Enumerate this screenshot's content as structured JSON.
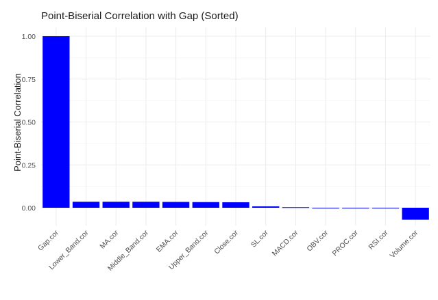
{
  "chart_data": {
    "type": "bar",
    "title": "Point-Biserial Correlation with Gap (Sorted)",
    "xlabel": "",
    "ylabel": "Point-Biserial Correlation",
    "categories": [
      "Gap.cor",
      "Lower_Band.cor",
      "MA.cor",
      "Middle_Band.cor",
      "EMA.cor",
      "Upper_Band.cor",
      "Close.cor",
      "SL.cor",
      "MACD.cor",
      "OBV.cor",
      "PROC.cor",
      "RSI.cor",
      "Volume.cor"
    ],
    "values": [
      1.0,
      0.035,
      0.035,
      0.035,
      0.034,
      0.033,
      0.032,
      0.008,
      0.003,
      -0.002,
      -0.003,
      -0.004,
      -0.07
    ],
    "ylim": [
      -0.08,
      1.0
    ],
    "yticks": [
      "0.00",
      "0.25",
      "0.50",
      "0.75",
      "1.00"
    ],
    "bar_color": "#0000ff",
    "grid": true,
    "legend": "none"
  }
}
